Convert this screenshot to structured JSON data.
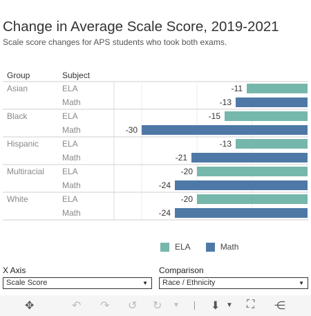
{
  "header": {
    "title": "Change in Average Scale Score, 2019-2021",
    "subtitle": "Scale score changes for APS students who took both exams."
  },
  "table_headers": {
    "group": "Group",
    "subject": "Subject"
  },
  "chart_data": {
    "type": "bar",
    "orientation": "horizontal",
    "groups": [
      {
        "group": "Asian",
        "rows": [
          {
            "subject": "ELA",
            "value": -11,
            "label": "-11"
          },
          {
            "subject": "Math",
            "value": -13,
            "label": "-13"
          }
        ]
      },
      {
        "group": "Black",
        "rows": [
          {
            "subject": "ELA",
            "value": -15,
            "label": "-15"
          },
          {
            "subject": "Math",
            "value": -30,
            "label": "-30"
          }
        ]
      },
      {
        "group": "Hispanic",
        "rows": [
          {
            "subject": "ELA",
            "value": -13,
            "label": "-13"
          },
          {
            "subject": "Math",
            "value": -21,
            "label": "-21"
          }
        ]
      },
      {
        "group": "Multiracial",
        "rows": [
          {
            "subject": "ELA",
            "value": -20,
            "label": "-20"
          },
          {
            "subject": "Math",
            "value": -24,
            "label": "-24"
          }
        ]
      },
      {
        "group": "White",
        "rows": [
          {
            "subject": "ELA",
            "value": -20,
            "label": "-20"
          },
          {
            "subject": "Math",
            "value": -24,
            "label": "-24"
          }
        ]
      }
    ],
    "series_colors": {
      "ELA": "#76b7ab",
      "Math": "#4e79a7"
    },
    "legend": {
      "position": "bottom",
      "entries": [
        "ELA",
        "Math"
      ]
    },
    "xlim": [
      -35,
      0
    ],
    "grid": true
  },
  "controls": {
    "x_axis": {
      "label": "X Axis",
      "value": "Scale Score"
    },
    "comparison": {
      "label": "Comparison",
      "value": "Race / Ethnicity"
    }
  },
  "toolbar": {
    "icons": [
      "move-icon",
      "undo-icon",
      "redo-icon",
      "revert-icon",
      "refresh-icon",
      "download-icon",
      "fullscreen-icon",
      "share-icon"
    ]
  }
}
